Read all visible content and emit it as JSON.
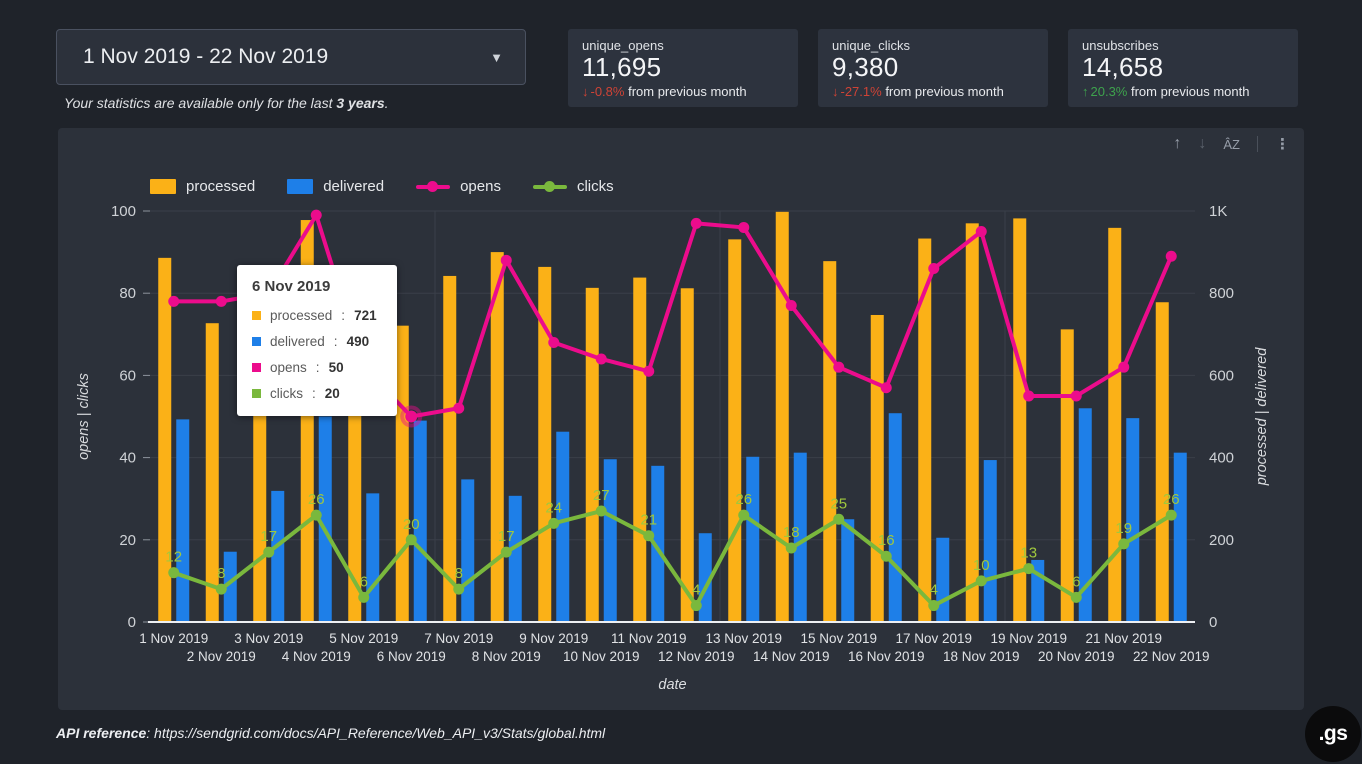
{
  "date_picker": {
    "value": "1 Nov 2019 - 22 Nov 2019"
  },
  "caption": {
    "prefix": "Your statistics are available only for the last ",
    "bold": "3 years",
    "suffix": "."
  },
  "stat_cards": [
    {
      "label": "unique_opens",
      "value": "11,695",
      "direction": "down",
      "arrow": "↓",
      "pct": "-0.8%",
      "suffix": " from previous month"
    },
    {
      "label": "unique_clicks",
      "value": "9,380",
      "direction": "down",
      "arrow": "↓",
      "pct": "-27.1%",
      "suffix": " from previous month"
    },
    {
      "label": "unsubscribes",
      "value": "14,658",
      "direction": "up",
      "arrow": "↑",
      "pct": "20.3%",
      "suffix": " from previous month"
    }
  ],
  "toolbar": {
    "up_glyph": "↑",
    "down_glyph": "↓",
    "sort_glyph": "ÂZ",
    "menu_glyph": "⋮"
  },
  "chart_data": {
    "type": "bar+line combo (bars on right axis, lines on left axis)",
    "categories": [
      "1 Nov 2019",
      "2 Nov 2019",
      "3 Nov 2019",
      "4 Nov 2019",
      "5 Nov 2019",
      "6 Nov 2019",
      "7 Nov 2019",
      "8 Nov 2019",
      "9 Nov 2019",
      "10 Nov 2019",
      "11 Nov 2019",
      "12 Nov 2019",
      "13 Nov 2019",
      "14 Nov 2019",
      "15 Nov 2019",
      "16 Nov 2019",
      "17 Nov 2019",
      "18 Nov 2019",
      "19 Nov 2019",
      "20 Nov 2019",
      "21 Nov 2019",
      "22 Nov 2019"
    ],
    "series": [
      {
        "name": "processed",
        "type": "bar",
        "axis": "right",
        "color": "#fbb117",
        "values": [
          886,
          727,
          800,
          978,
          760,
          721,
          842,
          900,
          864,
          813,
          838,
          812,
          931,
          998,
          878,
          747,
          933,
          970,
          982,
          712,
          959,
          778
        ]
      },
      {
        "name": "delivered",
        "type": "bar",
        "axis": "right",
        "color": "#1e7fe8",
        "values": [
          493,
          171,
          319,
          500,
          313,
          490,
          347,
          307,
          463,
          396,
          380,
          216,
          402,
          412,
          250,
          508,
          205,
          394,
          151,
          520,
          496,
          412
        ]
      },
      {
        "name": "opens",
        "type": "line",
        "axis": "left",
        "color": "#ec0c8c",
        "values": [
          78,
          78,
          80,
          99,
          62,
          50,
          52,
          88,
          68,
          64,
          61,
          97,
          96,
          77,
          62,
          57,
          86,
          95,
          55,
          55,
          62,
          89
        ]
      },
      {
        "name": "clicks",
        "type": "line",
        "axis": "left",
        "color": "#7ab83d",
        "show_labels": true,
        "label_color": "#a0c83e",
        "values": [
          12,
          8,
          17,
          26,
          6,
          20,
          8,
          17,
          24,
          27,
          21,
          4,
          26,
          18,
          25,
          16,
          4,
          10,
          13,
          6,
          19,
          26
        ]
      }
    ],
    "left_axis": {
      "title": "opens | clicks",
      "ticks": [
        "0",
        "20",
        "40",
        "60",
        "80",
        "100"
      ],
      "max": 100
    },
    "right_axis": {
      "title": "processed | delivered",
      "ticks": [
        "0",
        "200",
        "400",
        "600",
        "800",
        "1K"
      ],
      "max": 1000
    },
    "xlabel": "date",
    "grid": "horizontal + sparse vertical",
    "legend_position": "top-left"
  },
  "tooltip": {
    "title": "6 Nov 2019",
    "separator": ": ",
    "highlight_index": 5,
    "rows": [
      {
        "label": "processed",
        "value": "721",
        "color": "#fbb117"
      },
      {
        "label": "delivered",
        "value": "490",
        "color": "#1e7fe8"
      },
      {
        "label": "opens",
        "value": "50",
        "color": "#ec0c8c"
      },
      {
        "label": "clicks",
        "value": "20",
        "color": "#7ab83d"
      }
    ]
  },
  "footer": {
    "bold": "API reference",
    "rest": ": https://sendgrid.com/docs/API_Reference/Web_API_v3/Stats/global.html"
  },
  "logo": {
    "text": ".gs"
  }
}
